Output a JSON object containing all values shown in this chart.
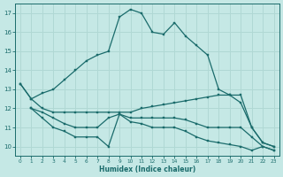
{
  "xlabel": "Humidex (Indice chaleur)",
  "xlim": [
    -0.5,
    23.5
  ],
  "ylim": [
    9.5,
    17.5
  ],
  "xticks": [
    0,
    1,
    2,
    3,
    4,
    5,
    6,
    7,
    8,
    9,
    10,
    11,
    12,
    13,
    14,
    15,
    16,
    17,
    18,
    19,
    20,
    21,
    22,
    23
  ],
  "yticks": [
    10,
    11,
    12,
    13,
    14,
    15,
    16,
    17
  ],
  "background_color": "#c5e8e5",
  "grid_color": "#b0d8d4",
  "line_color": "#1a6b6b",
  "series": [
    {
      "x": [
        0,
        1,
        2,
        3,
        4,
        5,
        6,
        7,
        8,
        9,
        10,
        11,
        12,
        13,
        14,
        15,
        16,
        17,
        18,
        19,
        20,
        21,
        22,
        23
      ],
      "y": [
        13.3,
        12.5,
        12.8,
        13.0,
        13.5,
        14.0,
        14.5,
        14.8,
        15.0,
        16.8,
        17.2,
        17.0,
        16.0,
        15.9,
        16.5,
        15.8,
        15.3,
        14.8,
        13.0,
        12.7,
        12.7,
        11.0,
        10.2,
        10.0
      ]
    },
    {
      "x": [
        0,
        1,
        2,
        3,
        4,
        5,
        6,
        7,
        8,
        9,
        10,
        11,
        12,
        13,
        14,
        15,
        16,
        17,
        18,
        19,
        20,
        21,
        22,
        23
      ],
      "y": [
        13.3,
        12.5,
        12.0,
        11.8,
        11.8,
        11.8,
        11.8,
        11.8,
        11.8,
        11.8,
        11.8,
        12.0,
        12.1,
        12.2,
        12.3,
        12.4,
        12.5,
        12.6,
        12.7,
        12.7,
        12.3,
        11.0,
        10.2,
        10.0
      ]
    },
    {
      "x": [
        1,
        2,
        3,
        4,
        5,
        6,
        7,
        8,
        9,
        10,
        11,
        12,
        13,
        14,
        15,
        16,
        17,
        18,
        19,
        20,
        21,
        22,
        23
      ],
      "y": [
        12.0,
        11.8,
        11.5,
        11.2,
        11.0,
        11.0,
        11.0,
        11.5,
        11.7,
        11.5,
        11.5,
        11.5,
        11.5,
        11.5,
        11.4,
        11.2,
        11.0,
        11.0,
        11.0,
        11.0,
        10.5,
        10.0,
        9.8
      ]
    },
    {
      "x": [
        1,
        2,
        3,
        4,
        5,
        6,
        7,
        8,
        9,
        10,
        11,
        12,
        13,
        14,
        15,
        16,
        17,
        18,
        19,
        20,
        21,
        22,
        23
      ],
      "y": [
        12.0,
        11.5,
        11.0,
        10.8,
        10.5,
        10.5,
        10.5,
        10.0,
        11.7,
        11.3,
        11.2,
        11.0,
        11.0,
        11.0,
        10.8,
        10.5,
        10.3,
        10.2,
        10.1,
        10.0,
        9.8,
        10.0,
        9.8
      ]
    }
  ]
}
